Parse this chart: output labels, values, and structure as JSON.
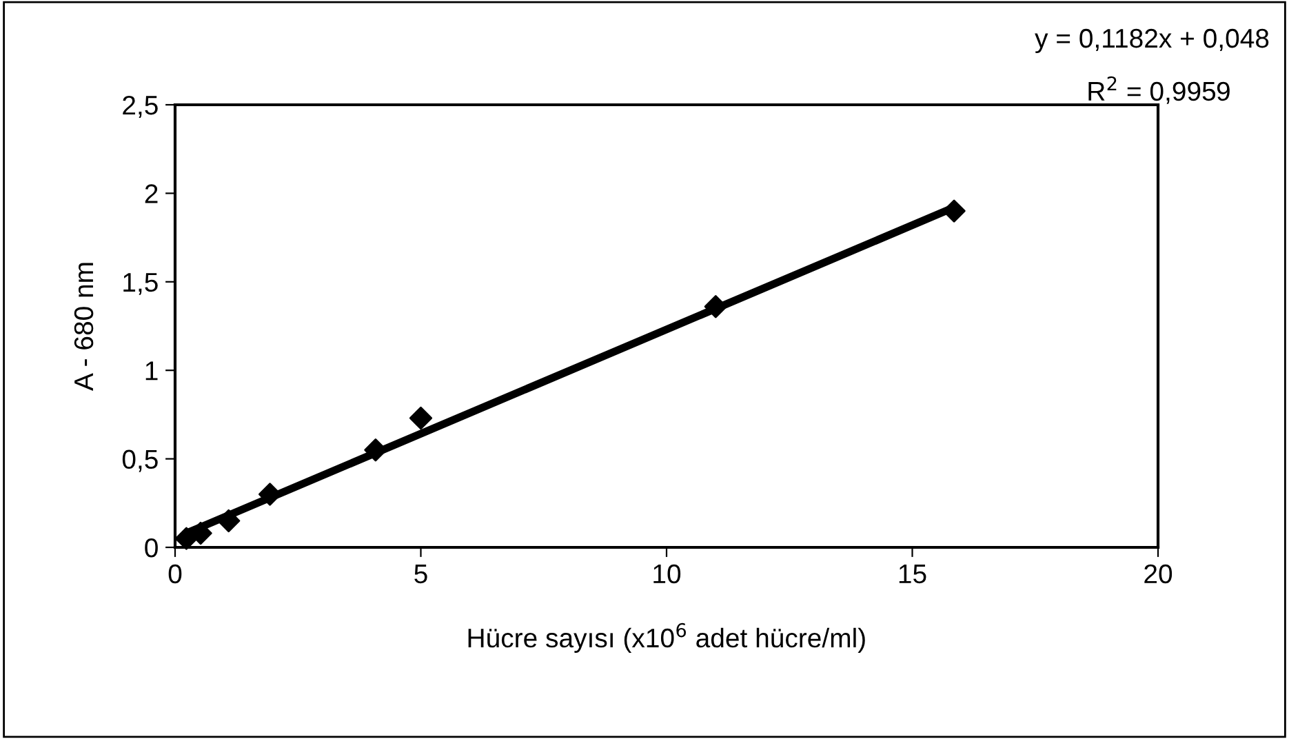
{
  "chart_data": {
    "type": "scatter",
    "xlabel": "Hücre sayısı (x10$^{6}$ adet hücre/ml)",
    "ylabel": "A - 680 nm",
    "x": [
      0.23,
      0.52,
      1.09,
      1.93,
      4.08,
      5.0,
      11.0,
      15.85
    ],
    "series": [
      {
        "color": "#000000",
        "values": [
          0.05,
          0.08,
          0.15,
          0.3,
          0.55,
          0.73,
          1.36,
          1.9
        ],
        "marker": "diamond"
      },
      {
        "type": "line",
        "color": "#000000",
        "x": [
          0.23,
          15.85
        ],
        "values": [
          0.08,
          1.92
        ],
        "marker": "none",
        "line_style": "solid"
      }
    ],
    "annotations": [
      "y = 0,1182x + 0,048",
      "R$^{2}$ = 0,9959"
    ],
    "xlim": [
      0,
      20
    ],
    "xticks": [
      0,
      5,
      10,
      15,
      20
    ],
    "ylim": [
      0,
      2.5
    ],
    "yticks": [
      0,
      {
        "value": 0.5,
        "label": "0,5"
      },
      1,
      {
        "value": 1.5,
        "label": "1,5"
      },
      2,
      {
        "value": 2.5,
        "label": "2,5"
      }
    ],
    "grid": false,
    "legend": false
  }
}
